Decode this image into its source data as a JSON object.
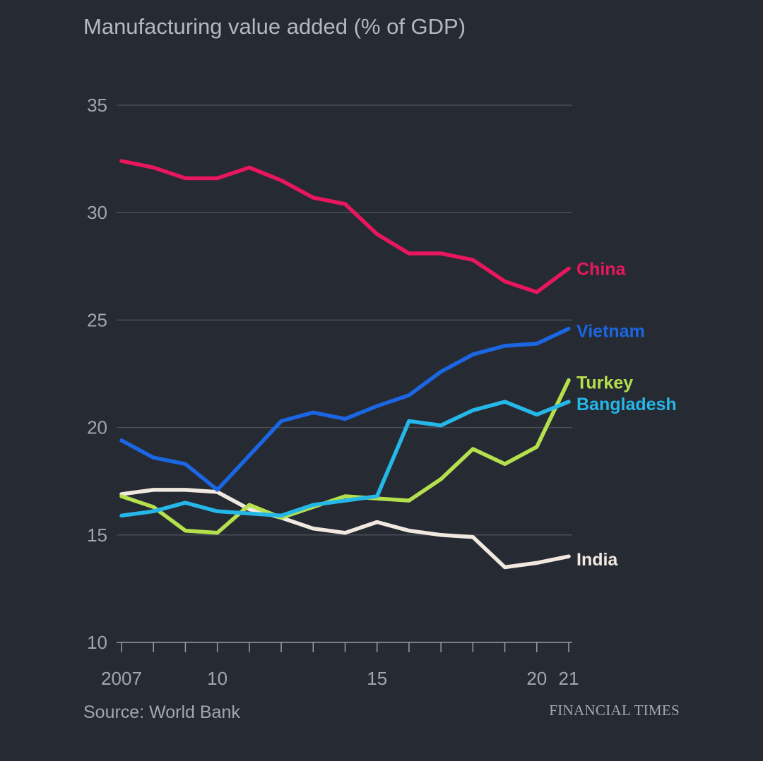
{
  "chart_data": {
    "type": "line",
    "title": "Manufacturing value added (% of GDP)",
    "source": "Source: World Bank",
    "brand": "FINANCIAL TIMES",
    "xlabel": "",
    "ylabel": "",
    "x": [
      2007,
      2008,
      2009,
      2010,
      2011,
      2012,
      2013,
      2014,
      2015,
      2016,
      2017,
      2018,
      2019,
      2020,
      2021
    ],
    "x_tick_labels": [
      {
        "year": 2007,
        "label": "2007"
      },
      {
        "year": 2010,
        "label": "10"
      },
      {
        "year": 2015,
        "label": "15"
      },
      {
        "year": 2020,
        "label": "20"
      },
      {
        "year": 2021,
        "label": "21"
      }
    ],
    "ylim": [
      10,
      35
    ],
    "y_ticks": [
      10,
      15,
      20,
      25,
      30,
      35
    ],
    "grid": true,
    "series": [
      {
        "name": "India",
        "color": "#f1e9df",
        "values": [
          16.9,
          17.1,
          17.1,
          17.0,
          16.2,
          15.8,
          15.3,
          15.1,
          15.6,
          15.2,
          15.0,
          14.9,
          13.5,
          13.7,
          14.0
        ]
      },
      {
        "name": "Turkey",
        "color": "#b5e04d",
        "values": [
          16.8,
          16.3,
          15.2,
          15.1,
          16.4,
          15.8,
          16.3,
          16.8,
          16.7,
          16.6,
          17.6,
          19.0,
          18.3,
          19.1,
          22.2
        ]
      },
      {
        "name": "Bangladesh",
        "color": "#25b7e8",
        "values": [
          15.9,
          16.1,
          16.5,
          16.1,
          16.0,
          15.9,
          16.4,
          16.6,
          16.8,
          20.3,
          20.1,
          20.8,
          21.2,
          20.6,
          21.2
        ]
      },
      {
        "name": "Vietnam",
        "color": "#1b66e3",
        "values": [
          19.4,
          18.6,
          18.3,
          17.1,
          18.7,
          20.3,
          20.7,
          20.4,
          21.0,
          21.5,
          22.6,
          23.4,
          23.8,
          23.9,
          24.6
        ]
      },
      {
        "name": "China",
        "color": "#e8175d",
        "values": [
          32.4,
          32.1,
          31.6,
          31.6,
          32.1,
          31.5,
          30.7,
          30.4,
          29.0,
          28.1,
          28.1,
          27.8,
          26.8,
          26.3,
          27.4
        ]
      }
    ]
  }
}
